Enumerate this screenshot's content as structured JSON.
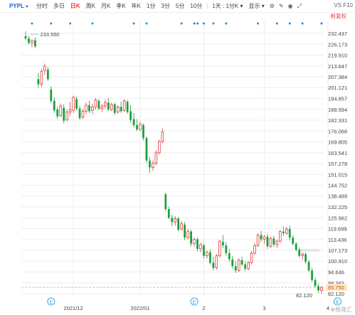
{
  "toolbar": {
    "ticker": "PYPL",
    "tabs": [
      {
        "label": "分时",
        "active": false
      },
      {
        "label": "多日",
        "active": false
      },
      {
        "label": "日K",
        "active": true
      },
      {
        "label": "周K",
        "active": false
      },
      {
        "label": "月K",
        "active": false
      },
      {
        "label": "季K",
        "active": false
      },
      {
        "label": "年K",
        "active": false
      },
      {
        "label": "1分",
        "active": false
      },
      {
        "label": "3分",
        "active": false
      },
      {
        "label": "5分",
        "active": false
      },
      {
        "label": "10分",
        "active": false
      }
    ],
    "period_select": "1天 : 1分K",
    "display_label": "显示",
    "right_label": "VS F10",
    "sub_right_label": "前复权"
  },
  "watermark": "格隆汇",
  "colors": {
    "up": "#e23b3b",
    "down": "#1aa03c",
    "grid": "#eeeeee",
    "marker": "#1a8fe0",
    "price_line": "#f0a04b"
  },
  "chart_data": {
    "type": "candlestick",
    "title": "",
    "y_ticks": [
      "232.437",
      "226.173",
      "219.910",
      "213.647",
      "207.384",
      "201.121",
      "194.857",
      "188.594",
      "182.331",
      "176.068",
      "169.805",
      "163.541",
      "157.278",
      "151.015",
      "144.752",
      "138.489",
      "132.225",
      "125.962",
      "119.699",
      "113.436",
      "107.173",
      "100.910",
      "94.646",
      "88.383",
      "82.120"
    ],
    "ylim": [
      82.12,
      232.437
    ],
    "x_tick_labels": [
      {
        "label": "2021/12",
        "index": 15
      },
      {
        "label": "2022/01",
        "index": 36
      },
      {
        "label": "2",
        "index": 56
      },
      {
        "label": "3",
        "index": 75
      },
      {
        "label": "4",
        "index": 95
      }
    ],
    "high_label": "233.550",
    "low_label": "82.120",
    "current_price": "85.750",
    "event_markers": [
      "E",
      "E",
      "E"
    ],
    "candles": [
      {
        "o": 230.8,
        "h": 233.6,
        "l": 228.5,
        "c": 229.5
      },
      {
        "o": 229.5,
        "h": 231.0,
        "l": 226.0,
        "c": 227.0
      },
      {
        "o": 227.0,
        "h": 229.0,
        "l": 224.5,
        "c": 228.5
      },
      {
        "o": 228.5,
        "h": 230.0,
        "l": 224.0,
        "c": 225.0
      },
      {
        "o": 206.0,
        "h": 209.5,
        "l": 201.0,
        "c": 203.0
      },
      {
        "o": 203.0,
        "h": 212.0,
        "l": 201.5,
        "c": 210.5
      },
      {
        "o": 211.0,
        "h": 215.0,
        "l": 208.5,
        "c": 213.5
      },
      {
        "o": 211.5,
        "h": 213.0,
        "l": 205.0,
        "c": 206.0
      },
      {
        "o": 200.0,
        "h": 202.0,
        "l": 192.0,
        "c": 193.5
      },
      {
        "o": 193.5,
        "h": 195.5,
        "l": 186.5,
        "c": 188.0
      },
      {
        "o": 188.5,
        "h": 190.0,
        "l": 183.0,
        "c": 184.5
      },
      {
        "o": 185.0,
        "h": 192.0,
        "l": 184.0,
        "c": 190.5
      },
      {
        "o": 189.5,
        "h": 191.5,
        "l": 180.5,
        "c": 182.0
      },
      {
        "o": 182.5,
        "h": 188.5,
        "l": 181.5,
        "c": 187.0
      },
      {
        "o": 187.0,
        "h": 193.0,
        "l": 185.0,
        "c": 188.5
      },
      {
        "o": 188.0,
        "h": 196.5,
        "l": 186.5,
        "c": 195.5
      },
      {
        "o": 194.5,
        "h": 196.0,
        "l": 188.0,
        "c": 189.0
      },
      {
        "o": 189.0,
        "h": 190.5,
        "l": 182.5,
        "c": 183.5
      },
      {
        "o": 184.0,
        "h": 189.0,
        "l": 183.0,
        "c": 187.5
      },
      {
        "o": 187.5,
        "h": 192.5,
        "l": 186.0,
        "c": 191.0
      },
      {
        "o": 191.0,
        "h": 193.5,
        "l": 186.5,
        "c": 187.5
      },
      {
        "o": 188.0,
        "h": 192.0,
        "l": 186.0,
        "c": 190.0
      },
      {
        "o": 190.0,
        "h": 195.0,
        "l": 188.5,
        "c": 194.0
      },
      {
        "o": 193.5,
        "h": 194.5,
        "l": 188.0,
        "c": 189.0
      },
      {
        "o": 189.0,
        "h": 191.5,
        "l": 187.0,
        "c": 190.5
      },
      {
        "o": 190.5,
        "h": 194.0,
        "l": 189.0,
        "c": 192.5
      },
      {
        "o": 192.5,
        "h": 195.0,
        "l": 187.5,
        "c": 188.5
      },
      {
        "o": 188.5,
        "h": 192.5,
        "l": 187.5,
        "c": 191.5
      },
      {
        "o": 191.5,
        "h": 192.5,
        "l": 185.5,
        "c": 186.5
      },
      {
        "o": 187.0,
        "h": 191.0,
        "l": 186.0,
        "c": 190.0
      },
      {
        "o": 190.0,
        "h": 193.0,
        "l": 186.5,
        "c": 187.5
      },
      {
        "o": 188.0,
        "h": 194.5,
        "l": 187.0,
        "c": 193.5
      },
      {
        "o": 193.0,
        "h": 194.0,
        "l": 186.0,
        "c": 187.0
      },
      {
        "o": 187.5,
        "h": 191.0,
        "l": 181.0,
        "c": 182.5
      },
      {
        "o": 183.0,
        "h": 186.5,
        "l": 178.0,
        "c": 179.5
      },
      {
        "o": 179.5,
        "h": 183.0,
        "l": 176.0,
        "c": 177.0
      },
      {
        "o": 177.0,
        "h": 181.5,
        "l": 176.0,
        "c": 180.0
      },
      {
        "o": 179.5,
        "h": 180.5,
        "l": 170.5,
        "c": 172.0
      },
      {
        "o": 172.0,
        "h": 173.0,
        "l": 157.5,
        "c": 159.0
      },
      {
        "o": 159.0,
        "h": 161.0,
        "l": 152.0,
        "c": 155.0
      },
      {
        "o": 155.0,
        "h": 159.0,
        "l": 153.0,
        "c": 157.5
      },
      {
        "o": 157.5,
        "h": 165.0,
        "l": 156.5,
        "c": 163.5
      },
      {
        "o": 163.5,
        "h": 171.0,
        "l": 162.5,
        "c": 170.0
      },
      {
        "o": 170.0,
        "h": 177.5,
        "l": 169.0,
        "c": 175.5
      },
      {
        "o": 139.5,
        "h": 140.5,
        "l": 129.5,
        "c": 131.0
      },
      {
        "o": 131.0,
        "h": 132.5,
        "l": 125.0,
        "c": 126.0
      },
      {
        "o": 126.0,
        "h": 128.0,
        "l": 121.0,
        "c": 123.5
      },
      {
        "o": 123.5,
        "h": 127.0,
        "l": 121.5,
        "c": 125.5
      },
      {
        "o": 125.5,
        "h": 126.5,
        "l": 118.0,
        "c": 119.0
      },
      {
        "o": 119.5,
        "h": 124.0,
        "l": 118.5,
        "c": 122.5
      },
      {
        "o": 122.0,
        "h": 123.5,
        "l": 113.0,
        "c": 114.5
      },
      {
        "o": 114.5,
        "h": 119.5,
        "l": 113.5,
        "c": 118.0
      },
      {
        "o": 118.0,
        "h": 119.0,
        "l": 109.5,
        "c": 111.0
      },
      {
        "o": 111.0,
        "h": 114.5,
        "l": 109.5,
        "c": 113.5
      },
      {
        "o": 113.5,
        "h": 114.5,
        "l": 106.5,
        "c": 108.0
      },
      {
        "o": 108.0,
        "h": 111.5,
        "l": 106.0,
        "c": 110.5
      },
      {
        "o": 110.0,
        "h": 111.0,
        "l": 102.5,
        "c": 104.0
      },
      {
        "o": 104.0,
        "h": 107.0,
        "l": 102.5,
        "c": 106.0
      },
      {
        "o": 106.0,
        "h": 107.5,
        "l": 99.0,
        "c": 100.0
      },
      {
        "o": 100.0,
        "h": 103.5,
        "l": 95.5,
        "c": 97.0
      },
      {
        "o": 97.0,
        "h": 105.0,
        "l": 96.0,
        "c": 104.0
      },
      {
        "o": 104.0,
        "h": 113.0,
        "l": 103.0,
        "c": 112.5
      },
      {
        "o": 112.0,
        "h": 116.0,
        "l": 108.5,
        "c": 110.0
      },
      {
        "o": 110.0,
        "h": 112.0,
        "l": 104.0,
        "c": 105.5
      },
      {
        "o": 105.5,
        "h": 108.0,
        "l": 100.5,
        "c": 102.0
      },
      {
        "o": 102.0,
        "h": 104.0,
        "l": 96.5,
        "c": 98.0
      },
      {
        "o": 98.0,
        "h": 101.0,
        "l": 94.0,
        "c": 95.5
      },
      {
        "o": 95.5,
        "h": 102.5,
        "l": 94.5,
        "c": 101.5
      },
      {
        "o": 101.5,
        "h": 103.5,
        "l": 98.0,
        "c": 99.0
      },
      {
        "o": 99.0,
        "h": 100.5,
        "l": 95.0,
        "c": 96.5
      },
      {
        "o": 96.5,
        "h": 101.0,
        "l": 95.5,
        "c": 100.0
      },
      {
        "o": 100.0,
        "h": 106.5,
        "l": 99.0,
        "c": 105.5
      },
      {
        "o": 105.5,
        "h": 111.0,
        "l": 104.5,
        "c": 110.0
      },
      {
        "o": 110.0,
        "h": 117.0,
        "l": 109.0,
        "c": 116.0
      },
      {
        "o": 116.0,
        "h": 118.5,
        "l": 112.0,
        "c": 113.5
      },
      {
        "o": 113.5,
        "h": 116.0,
        "l": 111.0,
        "c": 115.0
      },
      {
        "o": 115.0,
        "h": 116.5,
        "l": 108.0,
        "c": 109.5
      },
      {
        "o": 109.5,
        "h": 115.0,
        "l": 108.5,
        "c": 114.0
      },
      {
        "o": 114.0,
        "h": 115.5,
        "l": 109.0,
        "c": 110.5
      },
      {
        "o": 110.5,
        "h": 113.5,
        "l": 108.5,
        "c": 112.5
      },
      {
        "o": 112.5,
        "h": 119.0,
        "l": 111.5,
        "c": 118.0
      },
      {
        "o": 118.0,
        "h": 121.0,
        "l": 115.5,
        "c": 117.0
      },
      {
        "o": 117.0,
        "h": 120.5,
        "l": 116.0,
        "c": 119.5
      },
      {
        "o": 119.5,
        "h": 121.5,
        "l": 113.0,
        "c": 114.5
      },
      {
        "o": 114.5,
        "h": 116.0,
        "l": 110.0,
        "c": 111.0
      },
      {
        "o": 111.0,
        "h": 112.0,
        "l": 106.5,
        "c": 107.5
      },
      {
        "o": 107.5,
        "h": 109.0,
        "l": 103.0,
        "c": 104.0
      },
      {
        "o": 104.0,
        "h": 106.0,
        "l": 101.5,
        "c": 105.0
      },
      {
        "o": 105.0,
        "h": 106.0,
        "l": 99.5,
        "c": 100.5
      },
      {
        "o": 100.5,
        "h": 101.5,
        "l": 94.5,
        "c": 95.5
      },
      {
        "o": 95.5,
        "h": 97.0,
        "l": 89.0,
        "c": 90.0
      },
      {
        "o": 90.0,
        "h": 91.5,
        "l": 85.5,
        "c": 86.5
      },
      {
        "o": 86.5,
        "h": 88.0,
        "l": 82.5,
        "c": 84.0
      },
      {
        "o": 84.0,
        "h": 86.5,
        "l": 82.12,
        "c": 85.75
      }
    ]
  }
}
